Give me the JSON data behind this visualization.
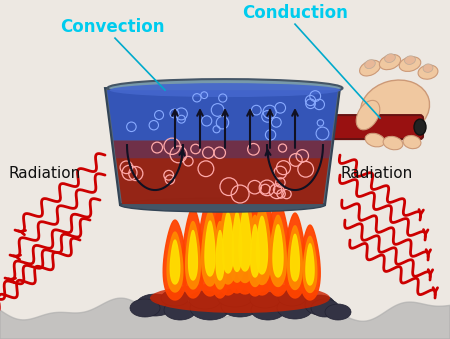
{
  "bg_color": "#ede8e2",
  "label_convection": "Convection",
  "label_conduction": "Conduction",
  "label_radiation_left": "Radiation",
  "label_radiation_right": "Radiation",
  "label_color_convection": "#00ccee",
  "label_color_conduction": "#00ccee",
  "label_color_radiation": "#111111",
  "radiation_color": "#cc0000",
  "pot_color_outer": "#556677",
  "pot_color_rim": "#778899",
  "water_color_top": "#3366cc",
  "water_color_bottom": "#882211",
  "handle_color": "#991111",
  "skin_color": "#f0c8a0",
  "flame_outer": "#ff4400",
  "flame_mid": "#ff8800",
  "flame_inner": "#ffdd00",
  "ground_color": "#888899",
  "rock_color": "#333344"
}
